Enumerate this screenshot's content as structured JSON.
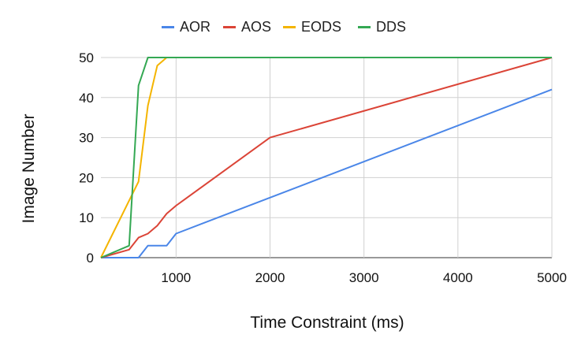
{
  "chart_data": {
    "type": "line",
    "title": "",
    "xlabel": "Time Constraint (ms)",
    "ylabel": "Image Number",
    "xlim": [
      200,
      5000
    ],
    "ylim": [
      0,
      50
    ],
    "xticks": [
      1000,
      2000,
      3000,
      4000,
      5000
    ],
    "yticks": [
      0,
      10,
      20,
      30,
      40,
      50
    ],
    "grid": "horizontal",
    "legend_position": "top",
    "series": [
      {
        "name": "AOR",
        "color": "#4a86e8",
        "x": [
          200,
          600,
          700,
          800,
          900,
          1000,
          2000,
          5000
        ],
        "y": [
          0,
          0,
          3,
          3,
          3,
          6,
          15,
          42
        ]
      },
      {
        "name": "AOS",
        "color": "#db4437",
        "x": [
          200,
          500,
          600,
          700,
          800,
          900,
          1000,
          2000,
          5000
        ],
        "y": [
          0,
          2,
          5,
          6,
          8,
          11,
          13,
          30,
          50
        ]
      },
      {
        "name": "EODS",
        "color": "#f4b400",
        "x": [
          200,
          600,
          700,
          800,
          900,
          5000
        ],
        "y": [
          0,
          19,
          38,
          48,
          50,
          50
        ]
      },
      {
        "name": "DDS",
        "color": "#34a853",
        "x": [
          200,
          500,
          600,
          700,
          5000
        ],
        "y": [
          0,
          3,
          43,
          50,
          50
        ]
      }
    ]
  }
}
